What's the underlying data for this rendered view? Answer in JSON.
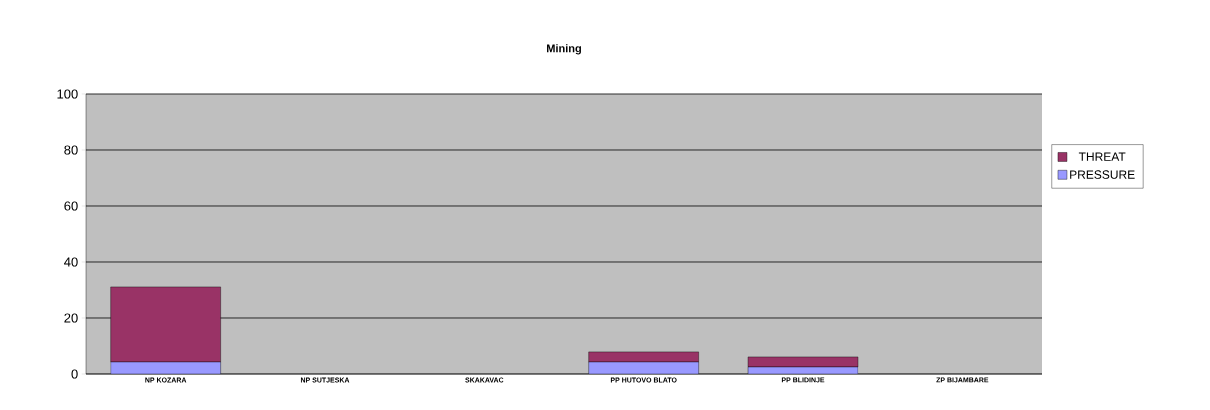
{
  "chart_data": {
    "type": "bar",
    "title": "Mining",
    "stacked": true,
    "categories": [
      "NP KOZARA",
      "NP SUTJESKA",
      "SKAKAVAC",
      "PP HUTOVO BLATO",
      "PP BLIDINJE",
      "ZP BIJAMBARE"
    ],
    "series": [
      {
        "name": "PRESSURE",
        "color": "#9999ff",
        "values": [
          4.3,
          0,
          0,
          4.3,
          2.5,
          0
        ]
      },
      {
        "name": "THREAT",
        "color": "#993366",
        "values": [
          26.8,
          0,
          0,
          3.6,
          3.6,
          0
        ]
      }
    ],
    "ylim": [
      0,
      100
    ],
    "yticks": [
      0,
      20,
      40,
      60,
      80,
      100
    ],
    "grid": "y",
    "legend": "right"
  }
}
